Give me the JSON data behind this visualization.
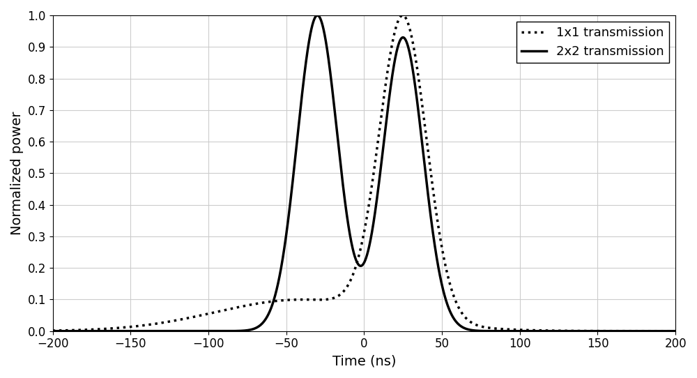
{
  "xlabel": "Time (ns)",
  "ylabel": "Normalized power",
  "xlim": [
    -200,
    200
  ],
  "ylim": [
    0,
    1
  ],
  "yticks": [
    0,
    0.1,
    0.2,
    0.3,
    0.4,
    0.5,
    0.6,
    0.7,
    0.8,
    0.9,
    1
  ],
  "xticks": [
    -200,
    -150,
    -100,
    -50,
    0,
    50,
    100,
    150,
    200
  ],
  "legend_1x1": "1x1 transmission",
  "legend_2x2": "2x2 transmission",
  "line_color": "#000000",
  "bg_color": "#ffffff",
  "grid_color": "#cccccc",
  "lw_solid": 2.5,
  "lw_dotted": 2.5,
  "dotted_dots": 2.5
}
